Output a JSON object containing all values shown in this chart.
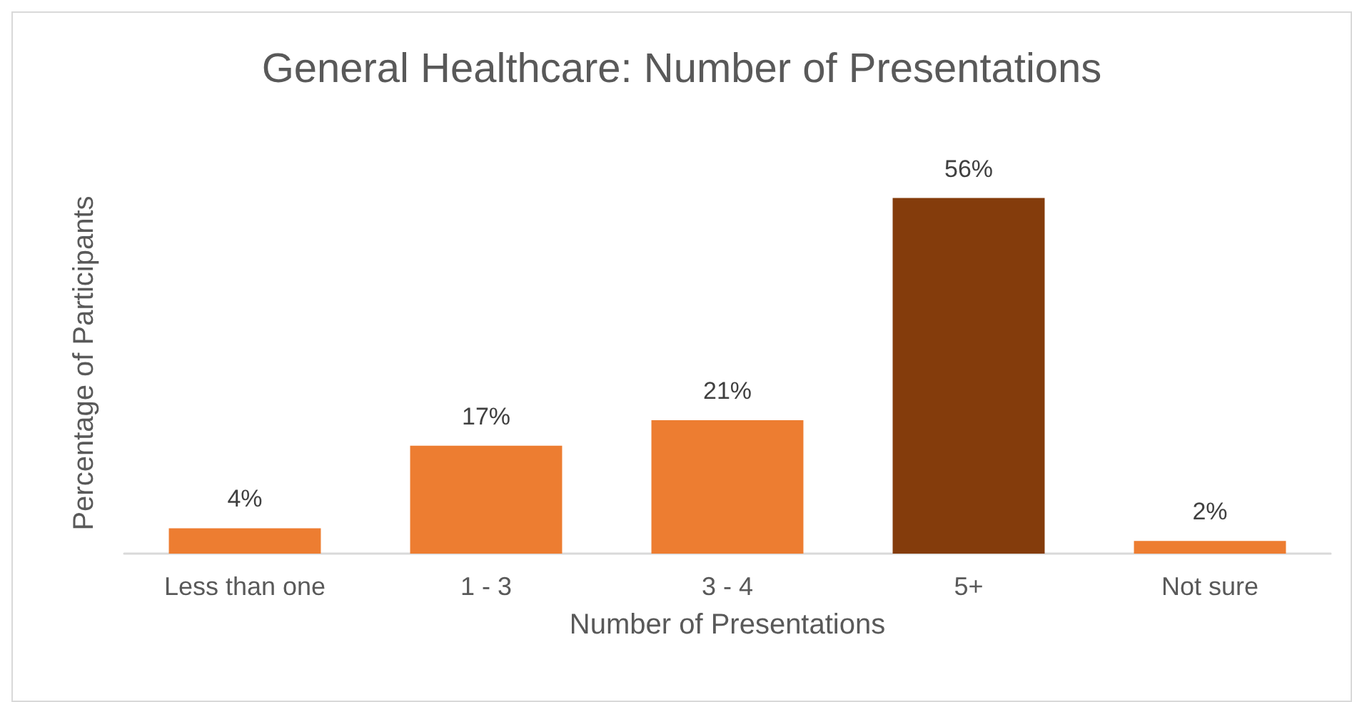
{
  "chart_data": {
    "type": "bar",
    "title": "General Healthcare: Number of Presentations",
    "xlabel": "Number of Presentations",
    "ylabel": "Percentage of Participants",
    "categories": [
      "Less than one",
      "1 - 3",
      "3 - 4",
      "5+",
      "Not sure"
    ],
    "values": [
      4,
      17,
      21,
      56,
      2
    ],
    "colors": [
      "#ed7d31",
      "#ed7d31",
      "#ed7d31",
      "#843c0c",
      "#ed7d31"
    ],
    "value_labels": [
      "4%",
      "17%",
      "21%",
      "56%",
      "2%"
    ]
  }
}
